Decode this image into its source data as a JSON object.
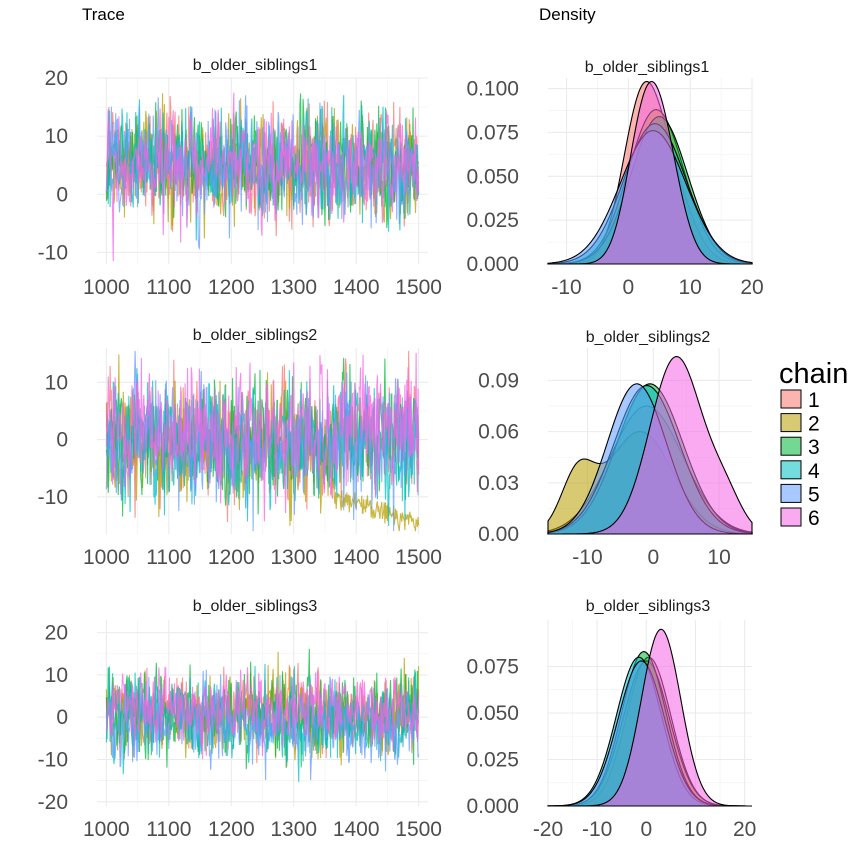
{
  "chart_data": {
    "type": "line",
    "column_titles": {
      "trace": "Trace",
      "density": "Density"
    },
    "legend": {
      "title": "chain",
      "position": "right",
      "entries": [
        {
          "label": "1",
          "color": "#F8766D"
        },
        {
          "label": "2",
          "color": "#B79F00"
        },
        {
          "label": "3",
          "color": "#00BA38"
        },
        {
          "label": "4",
          "color": "#00BFC4"
        },
        {
          "label": "5",
          "color": "#619CFF"
        },
        {
          "label": "6",
          "color": "#F564E3"
        }
      ]
    },
    "grid": true,
    "parameters": [
      {
        "name": "b_older_siblings1",
        "trace": {
          "xlim": [
            985,
            1515
          ],
          "ylim": [
            -12,
            20
          ],
          "x_ticks": [
            1000,
            1100,
            1200,
            1300,
            1400,
            1500
          ],
          "y_ticks": [
            20,
            10,
            0,
            -10
          ],
          "iterations": [
            1000,
            1500
          ],
          "chains": [
            {
              "chain": "1",
              "mean": 5,
              "sd": 4.3
            },
            {
              "chain": "2",
              "mean": 5,
              "sd": 4.3
            },
            {
              "chain": "3",
              "mean": 5,
              "sd": 4.3
            },
            {
              "chain": "4",
              "mean": 5,
              "sd": 4.3
            },
            {
              "chain": "5",
              "mean": 5,
              "sd": 4.5
            },
            {
              "chain": "6",
              "mean": 5,
              "sd": 4.0
            }
          ]
        },
        "density": {
          "xlim": [
            -13,
            20
          ],
          "ylim": [
            0,
            0.106
          ],
          "x_ticks": [
            -10,
            0,
            10,
            20
          ],
          "y_ticks": [
            "0.100",
            "0.075",
            "0.050",
            "0.025",
            "0.000"
          ],
          "y_tick_values": [
            0.1,
            0.075,
            0.05,
            0.025,
            0
          ],
          "curves": [
            {
              "chain": "1",
              "components": [
                {
                  "w": 0.7,
                  "mu": 2.2,
                  "sd": 3.2
                },
                {
                  "w": 0.3,
                  "mu": 7,
                  "sd": 3.5
                }
              ],
              "peak": 0.104
            },
            {
              "chain": "2",
              "components": [
                {
                  "w": 1,
                  "mu": 4.5,
                  "sd": 4.5
                }
              ],
              "peak": 0.088
            },
            {
              "chain": "3",
              "components": [
                {
                  "w": 1,
                  "mu": 5,
                  "sd": 4.6
                }
              ],
              "peak": 0.084
            },
            {
              "chain": "4",
              "components": [
                {
                  "w": 1,
                  "mu": 4.3,
                  "sd": 5
                }
              ],
              "peak": 0.08
            },
            {
              "chain": "5",
              "components": [
                {
                  "w": 1,
                  "mu": 4,
                  "sd": 5.3
                }
              ],
              "peak": 0.076
            },
            {
              "chain": "6",
              "components": [
                {
                  "w": 0.5,
                  "mu": 2.3,
                  "sd": 2.8
                },
                {
                  "w": 0.5,
                  "mu": 5.5,
                  "sd": 3
                }
              ],
              "peak": 0.104
            }
          ]
        }
      },
      {
        "name": "b_older_siblings2",
        "trace": {
          "xlim": [
            985,
            1515
          ],
          "ylim": [
            -16.5,
            16
          ],
          "x_ticks": [
            1000,
            1100,
            1200,
            1300,
            1400,
            1500
          ],
          "y_ticks": [
            10,
            0,
            -10
          ],
          "iterations": [
            1000,
            1500
          ],
          "chains": [
            {
              "chain": "1",
              "mean": 0,
              "sd": 5
            },
            {
              "chain": "2",
              "mean": -1,
              "sd": 5,
              "drift": {
                "start_iter": 1365,
                "end_value": -14.5
              }
            },
            {
              "chain": "3",
              "mean": 0,
              "sd": 5
            },
            {
              "chain": "4",
              "mean": 0,
              "sd": 5
            },
            {
              "chain": "5",
              "mean": -1,
              "sd": 5
            },
            {
              "chain": "6",
              "mean": 1.5,
              "sd": 5
            }
          ]
        },
        "density": {
          "xlim": [
            -16,
            15
          ],
          "ylim": [
            0,
            0.109
          ],
          "x_ticks": [
            -10,
            0,
            10
          ],
          "y_ticks": [
            "0.09",
            "0.06",
            "0.03",
            "0.00"
          ],
          "y_tick_values": [
            0.09,
            0.06,
            0.03,
            0
          ],
          "curves": [
            {
              "chain": "1",
              "components": [
                {
                  "w": 1,
                  "mu": -1,
                  "sd": 5.5
                }
              ],
              "peak": 0.075
            },
            {
              "chain": "2",
              "components": [
                {
                  "w": 0.35,
                  "mu": -11.5,
                  "sd": 2.5
                },
                {
                  "w": 0.65,
                  "mu": -2,
                  "sd": 5
                }
              ],
              "peak": 0.06
            },
            {
              "chain": "3",
              "components": [
                {
                  "w": 1,
                  "mu": -0.5,
                  "sd": 5
                }
              ],
              "peak": 0.088
            },
            {
              "chain": "4",
              "components": [
                {
                  "w": 1,
                  "mu": -1,
                  "sd": 5
                }
              ],
              "peak": 0.087
            },
            {
              "chain": "5",
              "components": [
                {
                  "w": 1,
                  "mu": -2.5,
                  "sd": 4.5
                }
              ],
              "peak": 0.088
            },
            {
              "chain": "6",
              "components": [
                {
                  "w": 0.85,
                  "mu": 3.5,
                  "sd": 4
                },
                {
                  "w": 0.15,
                  "mu": 11,
                  "sd": 2.5
                }
              ],
              "peak": 0.104
            }
          ]
        }
      },
      {
        "name": "b_older_siblings3",
        "trace": {
          "xlim": [
            985,
            1515
          ],
          "ylim": [
            -21,
            23
          ],
          "x_ticks": [
            1000,
            1100,
            1200,
            1300,
            1400,
            1500
          ],
          "y_ticks": [
            20,
            10,
            0,
            -10,
            -20
          ],
          "iterations": [
            1000,
            1500
          ],
          "chains": [
            {
              "chain": "1",
              "mean": 1,
              "sd": 4.3
            },
            {
              "chain": "2",
              "mean": 0,
              "sd": 4.3
            },
            {
              "chain": "3",
              "mean": 0,
              "sd": 4.5
            },
            {
              "chain": "4",
              "mean": 0,
              "sd": 4.3
            },
            {
              "chain": "5",
              "mean": -1,
              "sd": 4.3
            },
            {
              "chain": "6",
              "mean": 2,
              "sd": 4.0
            }
          ]
        },
        "density": {
          "xlim": [
            -20,
            21.5
          ],
          "ylim": [
            0,
            0.1
          ],
          "x_ticks": [
            -20,
            -10,
            0,
            10,
            20
          ],
          "y_ticks": [
            "0.075",
            "0.050",
            "0.025",
            "0.000"
          ],
          "y_tick_values": [
            0.075,
            0.05,
            0.025,
            0
          ],
          "curves": [
            {
              "chain": "1",
              "components": [
                {
                  "w": 1,
                  "mu": 0.5,
                  "sd": 4.5
                }
              ],
              "peak": 0.08
            },
            {
              "chain": "2",
              "components": [
                {
                  "w": 1,
                  "mu": 0,
                  "sd": 4.7
                }
              ],
              "peak": 0.078
            },
            {
              "chain": "3",
              "components": [
                {
                  "w": 1,
                  "mu": -0.5,
                  "sd": 4.5
                }
              ],
              "peak": 0.083
            },
            {
              "chain": "4",
              "components": [
                {
                  "w": 1,
                  "mu": -1.5,
                  "sd": 4.6
                }
              ],
              "peak": 0.08
            },
            {
              "chain": "5",
              "components": [
                {
                  "w": 1,
                  "mu": -1,
                  "sd": 4.7
                }
              ],
              "peak": 0.078
            },
            {
              "chain": "6",
              "components": [
                {
                  "w": 1,
                  "mu": 3,
                  "sd": 4
                }
              ],
              "peak": 0.095
            }
          ]
        }
      }
    ]
  }
}
